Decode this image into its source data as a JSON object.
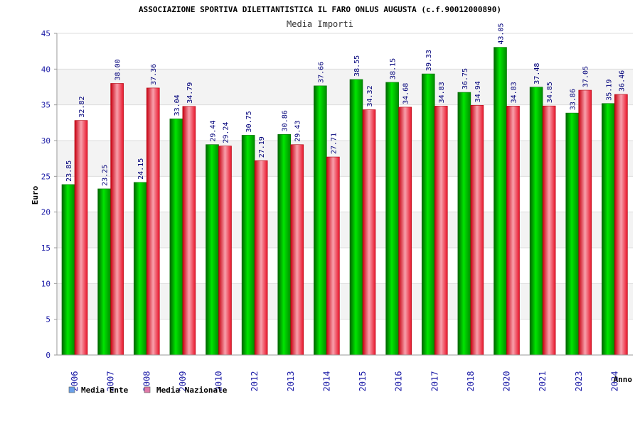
{
  "chart_data": {
    "type": "bar",
    "title": "ASSOCIAZIONE SPORTIVA DILETTANTISTICA IL FARO ONLUS AUGUSTA (c.f.90012000890)",
    "subtitle": "Media Importi",
    "ylabel": "Euro",
    "xlabel": "Anno",
    "ylim": [
      0,
      45
    ],
    "yticks": [
      "0",
      "5",
      "10",
      "15",
      "20",
      "25",
      "30",
      "35",
      "40",
      "45"
    ],
    "categories": [
      "2006",
      "2007",
      "2008",
      "2009",
      "2010",
      "2012",
      "2013",
      "2014",
      "2015",
      "2016",
      "2017",
      "2018",
      "2020",
      "2021",
      "2023",
      "2024"
    ],
    "series": [
      {
        "name": "Media Ente",
        "color": "#00b400",
        "legend_color": "#6aa0e8",
        "values": [
          23.85,
          23.25,
          24.15,
          33.04,
          29.44,
          30.75,
          30.86,
          37.66,
          38.55,
          38.15,
          39.33,
          36.75,
          43.05,
          37.48,
          33.86,
          35.19
        ],
        "labels": [
          "23.85",
          "23.25",
          "24.15",
          "33.04",
          "29.44",
          "30.75",
          "30.86",
          "37.66",
          "38.55",
          "38.15",
          "39.33",
          "36.75",
          "43.05",
          "37.48",
          "33.86",
          "35.19"
        ]
      },
      {
        "name": "Media Nazionale",
        "color": "#e8142a",
        "legend_color": "#e07aa8",
        "values": [
          32.82,
          38.0,
          37.36,
          34.79,
          29.24,
          27.19,
          29.43,
          27.71,
          34.32,
          34.68,
          34.83,
          34.94,
          34.83,
          34.85,
          37.05,
          36.46
        ],
        "labels": [
          "32.82",
          "38.00",
          "37.36",
          "34.79",
          "29.24",
          "27.19",
          "29.43",
          "27.71",
          "34.32",
          "34.68",
          "34.83",
          "34.94",
          "34.83",
          "34.85",
          "37.05",
          "36.46"
        ]
      }
    ],
    "grid": true,
    "legend_position": "bottom-left"
  }
}
